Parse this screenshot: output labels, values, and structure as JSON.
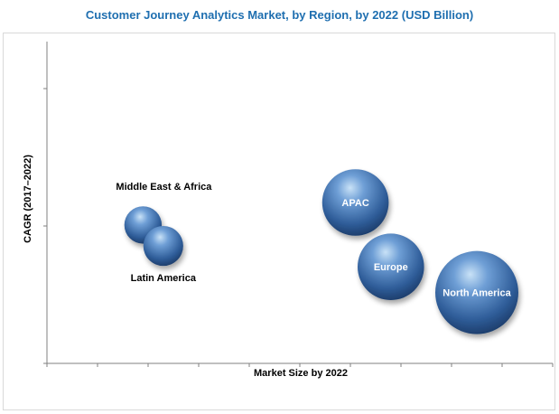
{
  "chart_data": {
    "type": "bubble",
    "title": "Customer Journey Analytics Market, by Region, by 2022 (USD Billion)",
    "xlabel": "Market Size by 2022",
    "ylabel": "CAGR (2017–2022)",
    "colors": {
      "bubble": "#3f6fae",
      "title": "#1f6fb0",
      "axis": "#808080"
    },
    "grid": false,
    "series": [
      {
        "name": "North America",
        "x": 8.5,
        "y": 2.2,
        "size": 1.0,
        "label_inside": true
      },
      {
        "name": "Europe",
        "x": 6.8,
        "y": 3.0,
        "size": 0.8,
        "label_inside": true
      },
      {
        "name": "APAC",
        "x": 6.1,
        "y": 5.0,
        "size": 0.8,
        "label_inside": true
      },
      {
        "name": "Middle East & Africa",
        "x": 1.9,
        "y": 4.3,
        "size": 0.45,
        "label_inside": false
      },
      {
        "name": "Latin America",
        "x": 2.3,
        "y": 3.65,
        "size": 0.48,
        "label_inside": false
      }
    ],
    "xlim": [
      0,
      10
    ],
    "ylim": [
      0,
      10
    ]
  }
}
